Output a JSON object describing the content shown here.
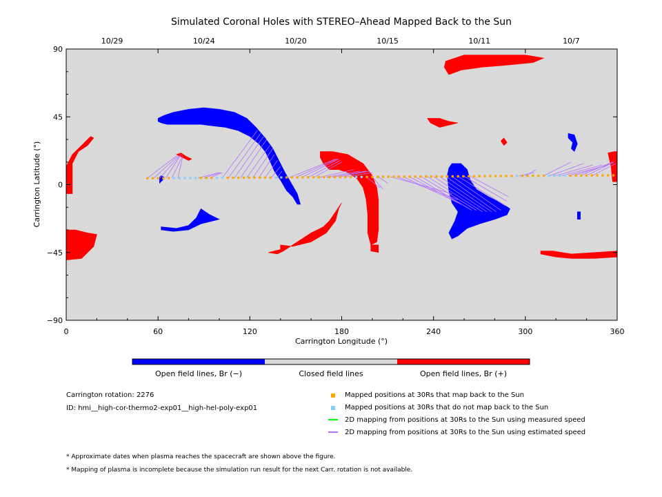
{
  "chart_data": {
    "type": "scatter",
    "title": "Simulated Coronal Holes with STEREO–Ahead Mapped Back to the Sun",
    "xlabel": "Carrington Longitude (°)",
    "ylabel": "Carrington Latitude (°)",
    "xlim": [
      0,
      360
    ],
    "ylim": [
      -90,
      90
    ],
    "x_ticks": [
      "0",
      "60",
      "120",
      "180",
      "240",
      "300",
      "360"
    ],
    "y_ticks": [
      "−90",
      "−45",
      "0",
      "45",
      "90"
    ],
    "top_axis_dates": [
      {
        "label": "10/29",
        "lon": 30
      },
      {
        "label": "10/24",
        "lon": 90
      },
      {
        "label": "10/20",
        "lon": 150
      },
      {
        "label": "10/15",
        "lon": 210
      },
      {
        "label": "10/11",
        "lon": 270
      },
      {
        "label": "10/7",
        "lon": 330
      }
    ],
    "colors": {
      "closed": "#d9d9d9",
      "open_negative": "#0000ff",
      "open_positive": "#ff0000",
      "map_back": "#ffa500",
      "no_map_back": "#87cefa",
      "measured_speed": "#00ff00",
      "estimated_speed": "#b570ff"
    },
    "coronal_holes": {
      "negative": [
        [
          [
            61,
            1
          ],
          [
            63,
            3
          ],
          [
            64,
            5
          ],
          [
            62,
            6
          ],
          [
            61,
            5
          ]
        ],
        [
          [
            62,
            -28
          ],
          [
            72,
            -29
          ],
          [
            80,
            -27
          ],
          [
            85,
            -22
          ],
          [
            88,
            -16
          ],
          [
            94,
            -20
          ],
          [
            100,
            -23
          ],
          [
            96,
            -24
          ],
          [
            88,
            -26
          ],
          [
            80,
            -30
          ],
          [
            70,
            -31
          ],
          [
            62,
            -30
          ]
        ],
        [
          [
            60,
            44
          ],
          [
            64,
            46
          ],
          [
            70,
            48
          ],
          [
            80,
            50
          ],
          [
            90,
            51
          ],
          [
            100,
            50
          ],
          [
            110,
            48
          ],
          [
            118,
            44
          ],
          [
            124,
            38
          ],
          [
            130,
            31
          ],
          [
            135,
            24
          ],
          [
            139,
            16
          ],
          [
            143,
            8
          ],
          [
            147,
            1
          ],
          [
            151,
            -6
          ],
          [
            153,
            -13
          ],
          [
            151,
            -13
          ],
          [
            148,
            -8
          ],
          [
            144,
            -4
          ],
          [
            140,
            3
          ],
          [
            136,
            9
          ],
          [
            133,
            16
          ],
          [
            130,
            22
          ],
          [
            126,
            27
          ],
          [
            120,
            32
          ],
          [
            112,
            36
          ],
          [
            104,
            38
          ],
          [
            96,
            39
          ],
          [
            88,
            40
          ],
          [
            80,
            40
          ],
          [
            72,
            40
          ],
          [
            66,
            40
          ],
          [
            62,
            41
          ],
          [
            60,
            42
          ]
        ],
        [
          [
            252,
            14
          ],
          [
            258,
            14
          ],
          [
            262,
            10
          ],
          [
            264,
            3
          ],
          [
            268,
            -3
          ],
          [
            276,
            -8
          ],
          [
            284,
            -12
          ],
          [
            290,
            -16
          ],
          [
            288,
            -20
          ],
          [
            280,
            -23
          ],
          [
            270,
            -26
          ],
          [
            262,
            -29
          ],
          [
            256,
            -34
          ],
          [
            252,
            -36
          ],
          [
            250,
            -32
          ],
          [
            254,
            -24
          ],
          [
            256,
            -18
          ],
          [
            252,
            -12
          ],
          [
            250,
            -4
          ],
          [
            249,
            6
          ],
          [
            250,
            11
          ]
        ],
        [
          [
            328,
            34
          ],
          [
            332,
            33
          ],
          [
            334,
            27
          ],
          [
            332,
            22
          ],
          [
            330,
            24
          ],
          [
            331,
            28
          ],
          [
            328,
            31
          ]
        ],
        [
          [
            334,
            -18
          ],
          [
            336,
            -18
          ],
          [
            336,
            -23
          ],
          [
            334,
            -23
          ]
        ]
      ],
      "positive": [
        [
          [
            0,
            12
          ],
          [
            4,
            20
          ],
          [
            10,
            26
          ],
          [
            16,
            32
          ],
          [
            18,
            31
          ],
          [
            14,
            26
          ],
          [
            8,
            22
          ],
          [
            4,
            14
          ],
          [
            4,
            4
          ],
          [
            4,
            -6
          ],
          [
            0,
            -6
          ]
        ],
        [
          [
            0,
            -30
          ],
          [
            6,
            -30
          ],
          [
            14,
            -32
          ],
          [
            20,
            -33
          ],
          [
            18,
            -41
          ],
          [
            14,
            -45
          ],
          [
            10,
            -49
          ],
          [
            0,
            -50
          ]
        ],
        [
          [
            72,
            20
          ],
          [
            75,
            21
          ],
          [
            78,
            19
          ],
          [
            82,
            17
          ],
          [
            80,
            16
          ],
          [
            76,
            18
          ]
        ],
        [
          [
            140,
            -40
          ],
          [
            148,
            -41
          ],
          [
            160,
            -38
          ],
          [
            170,
            -32
          ],
          [
            176,
            -24
          ],
          [
            178,
            -16
          ],
          [
            180,
            -12
          ],
          [
            176,
            -18
          ],
          [
            172,
            -24
          ],
          [
            168,
            -28
          ],
          [
            164,
            -30
          ],
          [
            160,
            -32
          ],
          [
            154,
            -36
          ],
          [
            148,
            -40
          ],
          [
            142,
            -44
          ],
          [
            138,
            -46
          ],
          [
            132,
            -45
          ],
          [
            140,
            -43
          ]
        ],
        [
          [
            166,
            22
          ],
          [
            174,
            22
          ],
          [
            184,
            20
          ],
          [
            194,
            14
          ],
          [
            200,
            6
          ],
          [
            203,
            -2
          ],
          [
            204,
            -10
          ],
          [
            204,
            -20
          ],
          [
            204,
            -30
          ],
          [
            203,
            -38
          ],
          [
            199,
            -40
          ],
          [
            197,
            -32
          ],
          [
            197,
            -20
          ],
          [
            196,
            -10
          ],
          [
            194,
            -2
          ],
          [
            190,
            4
          ],
          [
            184,
            8
          ],
          [
            178,
            10
          ],
          [
            172,
            10
          ],
          [
            168,
            14
          ],
          [
            166,
            18
          ]
        ],
        [
          [
            199,
            -40
          ],
          [
            204,
            -40
          ],
          [
            204,
            -45
          ],
          [
            199,
            -44
          ]
        ],
        [
          [
            248,
            82
          ],
          [
            260,
            86
          ],
          [
            280,
            86
          ],
          [
            300,
            86
          ],
          [
            312,
            84
          ],
          [
            305,
            81
          ],
          [
            295,
            80
          ],
          [
            285,
            79
          ],
          [
            272,
            78
          ],
          [
            258,
            76
          ],
          [
            250,
            73
          ],
          [
            247,
            78
          ]
        ],
        [
          [
            236,
            44
          ],
          [
            244,
            44
          ],
          [
            250,
            42
          ],
          [
            256,
            41
          ],
          [
            252,
            40
          ],
          [
            244,
            38
          ],
          [
            238,
            41
          ]
        ],
        [
          [
            284,
            29
          ],
          [
            286,
            31
          ],
          [
            288,
            28
          ],
          [
            286,
            26
          ]
        ],
        [
          [
            310,
            -46
          ],
          [
            320,
            -48
          ],
          [
            330,
            -49
          ],
          [
            345,
            -49
          ],
          [
            360,
            -48
          ],
          [
            360,
            -44
          ],
          [
            345,
            -45
          ],
          [
            330,
            -46
          ],
          [
            318,
            -44
          ],
          [
            310,
            -44
          ]
        ],
        [
          [
            354,
            21
          ],
          [
            358,
            22
          ],
          [
            360,
            22
          ],
          [
            360,
            2
          ],
          [
            357,
            2
          ],
          [
            356,
            12
          ]
        ]
      ]
    },
    "mapped_positions": {
      "start_lon": 53,
      "end_lon": 359,
      "step": 3.5,
      "lat_start": 4.2,
      "lat_end": 6.2,
      "no_map_back_ranges": [
        [
          68,
          85
        ],
        [
          96,
          102
        ],
        [
          134,
          142
        ],
        [
          187,
          195
        ],
        [
          292,
          296
        ],
        [
          315,
          327
        ]
      ]
    },
    "mapping_lines_estimated": [
      [
        53,
        72,
        19
      ],
      [
        57,
        73,
        19
      ],
      [
        61,
        74,
        19
      ],
      [
        65,
        75,
        20
      ],
      [
        69,
        76,
        19
      ],
      [
        73,
        76,
        18
      ],
      [
        86,
        100,
        8
      ],
      [
        90,
        101,
        8
      ],
      [
        94,
        102,
        8
      ],
      [
        102,
        125,
        36
      ],
      [
        106,
        127,
        34
      ],
      [
        110,
        129,
        32
      ],
      [
        114,
        131,
        30
      ],
      [
        118,
        133,
        26
      ],
      [
        122,
        135,
        24
      ],
      [
        126,
        136,
        20
      ],
      [
        130,
        138,
        16
      ],
      [
        134,
        140,
        12
      ],
      [
        138,
        141,
        9
      ],
      [
        146,
        176,
        17
      ],
      [
        150,
        177,
        17
      ],
      [
        154,
        178,
        17
      ],
      [
        158,
        179,
        16
      ],
      [
        162,
        180,
        15
      ],
      [
        166,
        188,
        10
      ],
      [
        170,
        192,
        9
      ],
      [
        174,
        196,
        9
      ],
      [
        178,
        198,
        9
      ],
      [
        182,
        200,
        8
      ],
      [
        196,
        205,
        -2
      ],
      [
        200,
        207,
        -3
      ],
      [
        204,
        210,
        1
      ],
      [
        212,
        252,
        -6
      ],
      [
        216,
        256,
        -10
      ],
      [
        220,
        258,
        -13
      ],
      [
        224,
        262,
        -15
      ],
      [
        228,
        265,
        -17
      ],
      [
        232,
        268,
        -17
      ],
      [
        236,
        272,
        -18
      ],
      [
        240,
        275,
        -18
      ],
      [
        244,
        278,
        -18
      ],
      [
        248,
        281,
        -18
      ],
      [
        252,
        284,
        -17
      ],
      [
        256,
        287,
        -14
      ],
      [
        260,
        288,
        -11
      ],
      [
        264,
        289,
        -8
      ],
      [
        296,
        306,
        8
      ],
      [
        300,
        307,
        10
      ],
      [
        312,
        330,
        15
      ],
      [
        316,
        338,
        14
      ],
      [
        320,
        344,
        13
      ],
      [
        324,
        350,
        13
      ],
      [
        328,
        354,
        13
      ],
      [
        332,
        356,
        14
      ],
      [
        336,
        357,
        15
      ],
      [
        340,
        358,
        15
      ],
      [
        344,
        359,
        14
      ]
    ],
    "legend": {
      "colorbar": [
        "Open field lines, Br (−)",
        "Closed field lines",
        "Open field lines, Br (+)"
      ],
      "series": [
        "Mapped positions at 30Rs that map back to the Sun",
        "Mapped positions at 30Rs that do not map back to the Sun",
        "2D mapping from positions at 30Rs to the Sun using measured speed",
        "2D mapping from positions at 30Rs to the Sun using estimated speed"
      ]
    },
    "info": {
      "rotation": "Carrington rotation: 2276",
      "id": "ID: hmi__high-cor-thermo2-exp01__high-hel-poly-exp01"
    },
    "notes": [
      "* Approximate dates when plasma reaches the spacecraft are shown above the figure.",
      "* Mapping of plasma is incomplete because the simulation run result for the next Carr. rotation is not available."
    ]
  }
}
